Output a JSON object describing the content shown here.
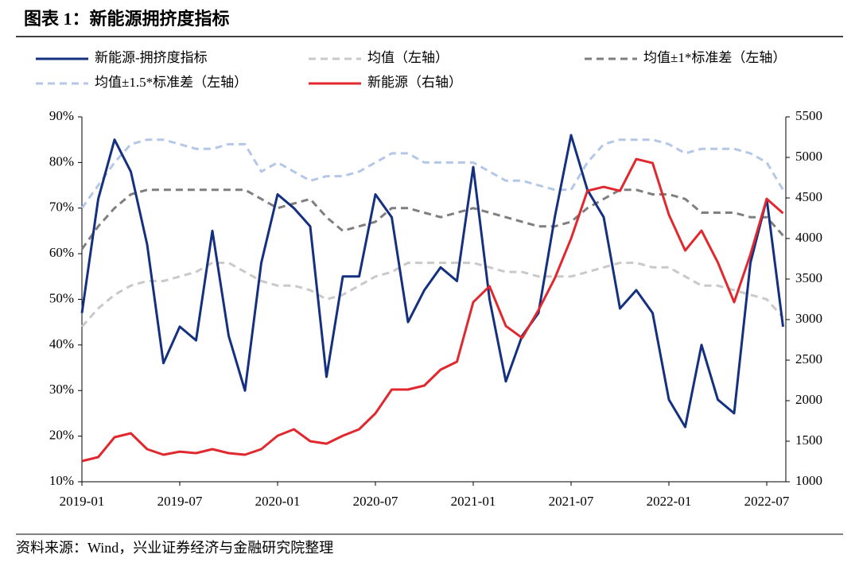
{
  "chart_data": {
    "type": "line",
    "title": "图表 1：新能源拥挤度指标",
    "source": "资料来源：Wind，兴业证券经济与金融研究院整理",
    "categories": [
      "2019-01",
      null,
      null,
      null,
      null,
      null,
      "2019-07",
      null,
      null,
      null,
      null,
      null,
      "2020-01",
      null,
      null,
      null,
      null,
      null,
      "2020-07",
      null,
      null,
      null,
      null,
      null,
      "2021-01",
      null,
      null,
      null,
      null,
      null,
      "2021-07",
      null,
      null,
      null,
      null,
      null,
      "2022-01",
      null,
      null,
      null,
      null,
      null,
      "2022-07",
      null
    ],
    "ylim": [
      10,
      90
    ],
    "yticks": [
      {
        "value": 10,
        "label": "10%"
      },
      {
        "value": 20,
        "label": "20%"
      },
      {
        "value": 30,
        "label": "30%"
      },
      {
        "value": 40,
        "label": "40%"
      },
      {
        "value": 50,
        "label": "50%"
      },
      {
        "value": 60,
        "label": "60%"
      },
      {
        "value": 70,
        "label": "70%"
      },
      {
        "value": 80,
        "label": "80%"
      },
      {
        "value": 90,
        "label": "90%"
      }
    ],
    "y2lim": [
      1000,
      5500
    ],
    "y2ticks": [
      1000,
      1500,
      2000,
      2500,
      3000,
      3500,
      4000,
      4500,
      5000,
      5500
    ],
    "series": [
      {
        "name": "新能源-拥挤度指标",
        "color": "#14307f",
        "dashed": false,
        "values": [
          47,
          72,
          85,
          78,
          62,
          36,
          44,
          41,
          65,
          42,
          30,
          58,
          73,
          70,
          66,
          33,
          55,
          55,
          73,
          68,
          45,
          52,
          57,
          54,
          79,
          50,
          32,
          42,
          47,
          68,
          86,
          74,
          68,
          48,
          52,
          47,
          28,
          22,
          40,
          28,
          25,
          58,
          72,
          44
        ]
      },
      {
        "name": "均值（左轴）",
        "color": "#c9c9c9",
        "dashed": true,
        "values": [
          44,
          48,
          51,
          53,
          54,
          54,
          55,
          56,
          58,
          58,
          56,
          54,
          53,
          53,
          52,
          50,
          51,
          53,
          55,
          56,
          58,
          58,
          58,
          58,
          58,
          57,
          56,
          56,
          55,
          55,
          55,
          56,
          57,
          58,
          58,
          57,
          57,
          55,
          53,
          53,
          52,
          51,
          50,
          46
        ]
      },
      {
        "name": "均值±1*标准差（左轴）",
        "color": "#7f7f7f",
        "dashed": true,
        "values": [
          61,
          66,
          70,
          73,
          74,
          74,
          74,
          74,
          74,
          74,
          74,
          72,
          70,
          71,
          72,
          68,
          65,
          66,
          67,
          70,
          70,
          69,
          68,
          69,
          70,
          69,
          68,
          67,
          66,
          66,
          67,
          70,
          72,
          74,
          74,
          73,
          73,
          72,
          69,
          69,
          69,
          68,
          68,
          64
        ]
      },
      {
        "name": "均值±1.5*标准差（左轴）",
        "color": "#b4c7e7",
        "dashed": true,
        "values": [
          70,
          75,
          80,
          84,
          85,
          85,
          84,
          83,
          83,
          84,
          84,
          78,
          80,
          78,
          76,
          77,
          77,
          78,
          80,
          82,
          82,
          80,
          80,
          80,
          80,
          78,
          76,
          76,
          75,
          74,
          74,
          80,
          84,
          85,
          85,
          85,
          84,
          82,
          83,
          83,
          83,
          82,
          80,
          74
        ]
      },
      {
        "name": "新能源（右轴）",
        "color": "#e0282e",
        "dashed": false,
        "axis": "y2",
        "values": [
          1255,
          1304,
          1549,
          1598,
          1402,
          1333,
          1372,
          1353,
          1402,
          1353,
          1333,
          1402,
          1568,
          1647,
          1500,
          1470,
          1568,
          1647,
          1843,
          2137,
          2137,
          2186,
          2382,
          2480,
          3215,
          3411,
          2921,
          2774,
          3117,
          3509,
          3999,
          4587,
          4636,
          4587,
          4979,
          4930,
          4293,
          3852,
          4097,
          3705,
          3215,
          3803,
          4489,
          4312
        ]
      }
    ]
  }
}
